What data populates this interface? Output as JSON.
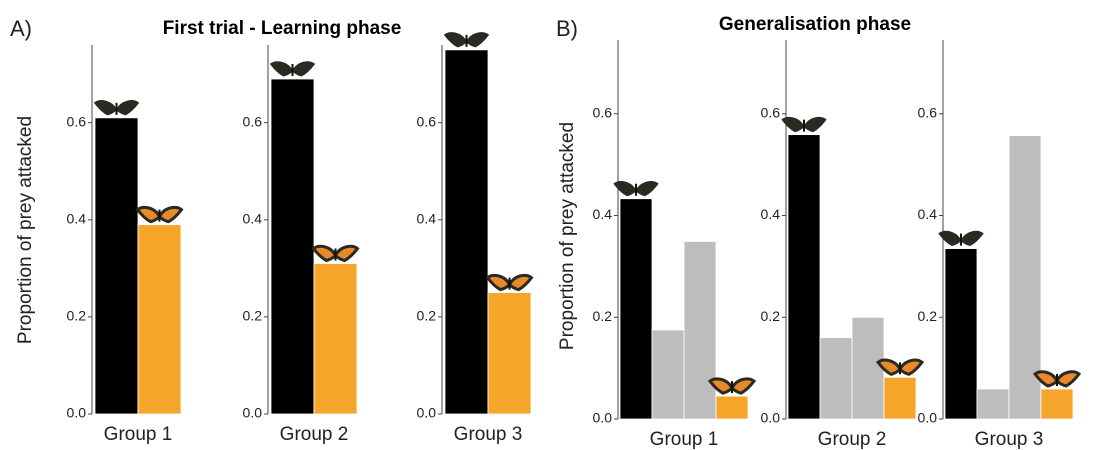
{
  "chart_data": [
    {
      "type": "bar",
      "panel_label": "A)",
      "title": "First trial - Learning phase",
      "y_label": "Proportion of prey attacked",
      "ylim": [
        0,
        0.76
      ],
      "yticks": [
        {
          "value": 0,
          "label": "0.0"
        },
        0.2,
        0.4,
        0.6
      ],
      "facets": [
        {
          "categories": [
            "Group 1"
          ],
          "series": [
            {
              "color": "#000000",
              "values": [
                0.61
              ]
            },
            {
              "color": "#f5a52a",
              "values": [
                0.39
              ]
            }
          ]
        },
        {
          "categories": [
            "Group 2"
          ],
          "series": [
            {
              "color": "#000000",
              "values": [
                0.69
              ]
            },
            {
              "color": "#f5a52a",
              "values": [
                0.31
              ]
            }
          ]
        },
        {
          "categories": [
            "Group 3"
          ],
          "series": [
            {
              "color": "#000000",
              "values": [
                0.75
              ]
            },
            {
              "color": "#f5a52a",
              "values": [
                0.25
              ]
            }
          ]
        }
      ]
    },
    {
      "type": "bar",
      "panel_label": "B)",
      "title": "Generalisation phase",
      "y_label": "Proportion of prey attacked",
      "ylim": [
        0,
        0.745
      ],
      "yticks": [
        {
          "value": 0,
          "label": "0.0"
        },
        0.2,
        0.4,
        0.6
      ],
      "facets": [
        {
          "categories": [
            "Group 1"
          ],
          "series": [
            {
              "color": "#000000",
              "values": [
                0.433
              ]
            },
            {
              "color": "#bdbdbd",
              "values": [
                0.175
              ]
            },
            {
              "color": "#bdbdbd",
              "values": [
                0.349
              ]
            },
            {
              "color": "#f5a52a",
              "values": [
                0.045
              ]
            }
          ]
        },
        {
          "categories": [
            "Group 2"
          ],
          "series": [
            {
              "color": "#000000",
              "values": [
                0.559
              ]
            },
            {
              "color": "#bdbdbd",
              "values": [
                0.16
              ]
            },
            {
              "color": "#bdbdbd",
              "values": [
                0.2
              ]
            },
            {
              "color": "#f5a52a",
              "values": [
                0.082
              ]
            }
          ]
        },
        {
          "categories": [
            "Group 3"
          ],
          "series": [
            {
              "color": "#000000",
              "values": [
                0.335
              ]
            },
            {
              "color": "#bdbdbd",
              "values": [
                0.059
              ]
            },
            {
              "color": "#bdbdbd",
              "values": [
                0.557
              ]
            },
            {
              "color": "#f5a52a",
              "values": [
                0.059
              ]
            }
          ]
        }
      ]
    }
  ]
}
